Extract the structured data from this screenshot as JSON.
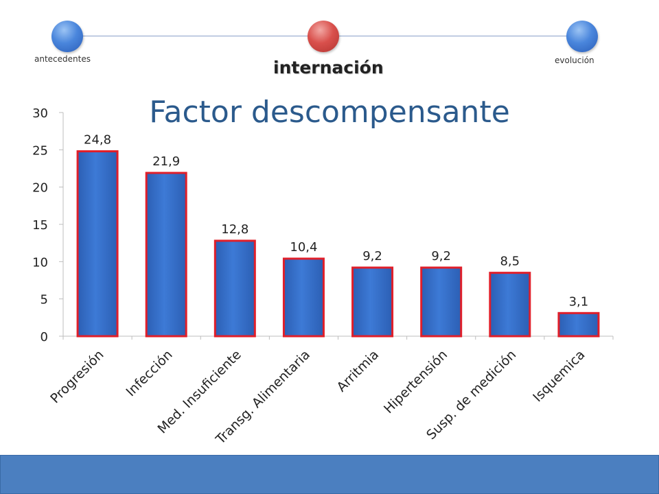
{
  "timeline": {
    "steps": [
      {
        "label": "antecedentes",
        "active": false
      },
      {
        "label": "internación",
        "active": true
      },
      {
        "label": "evolución",
        "active": false
      }
    ]
  },
  "colors": {
    "bar_fill": "#3d7ad6",
    "bar_border": "#e01f2a",
    "title": "#2b5a8c",
    "footer": "#4b7fc0"
  },
  "chart_data": {
    "type": "bar",
    "title": "Factor descompensante",
    "xlabel": "",
    "ylabel": "",
    "ylim": [
      0,
      30
    ],
    "yticks": [
      0,
      5,
      10,
      15,
      20,
      25,
      30
    ],
    "grid": false,
    "categories": [
      "Progresión",
      "Infección",
      "Med. Insuficiente",
      "Transg. Alimentaria",
      "Arritmia",
      "Hipertensión",
      "Susp. de medición",
      "Isquemica"
    ],
    "values": [
      24.8,
      21.9,
      12.8,
      10.4,
      9.2,
      9.2,
      8.5,
      3.1
    ],
    "data_labels": [
      "24,8",
      "21,9",
      "12,8",
      "10,4",
      "9,2",
      "9,2",
      "8,5",
      "3,1"
    ]
  }
}
